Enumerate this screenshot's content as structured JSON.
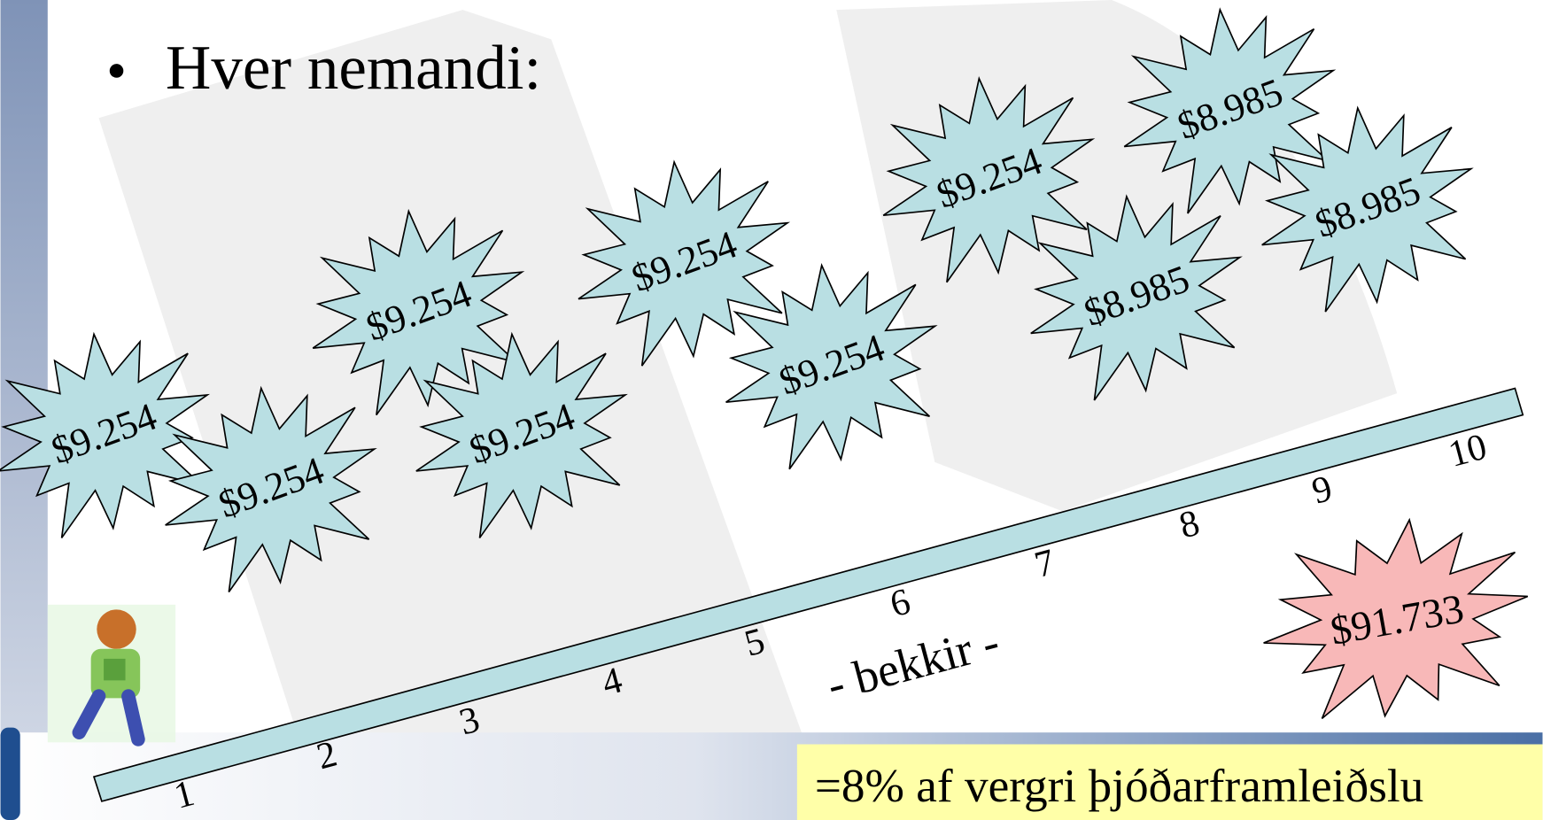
{
  "title": "Hver nemandi:",
  "stars": [
    "$9.254",
    "$9.254",
    "$9.254",
    "$9.254",
    "$9.254",
    "$9.254",
    "$9.254",
    "$8.985",
    "$8.985",
    "$8.985"
  ],
  "grades": [
    "1",
    "2",
    "3",
    "4",
    "5",
    "6",
    "7",
    "8",
    "9",
    "10"
  ],
  "axis_label": "- bekkir -",
  "total": "$91.733",
  "note": "=8% af vergri þjóðarframleiðslu"
}
